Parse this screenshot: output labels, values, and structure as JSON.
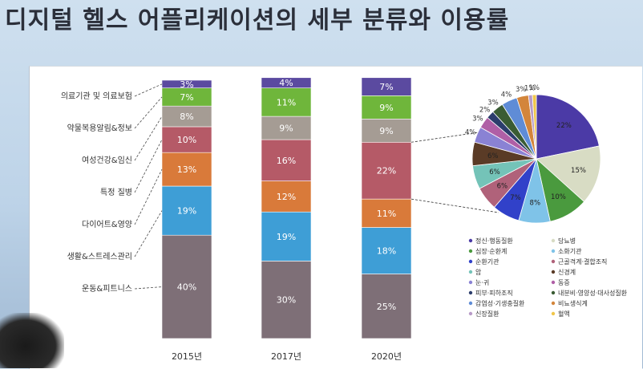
{
  "title": "디지털 헬스 어플리케이션의 세부 분류와 이용률",
  "chart_data": [
    {
      "type": "bar",
      "stacked": true,
      "categories": [
        "2015년",
        "2017년",
        "2020년"
      ],
      "series": [
        {
          "name": "운동&피트니스",
          "color": "#7e6f77",
          "values": [
            40,
            30,
            25
          ]
        },
        {
          "name": "생활&스트레스관리",
          "color": "#3e9ed6",
          "values": [
            19,
            19,
            18
          ]
        },
        {
          "name": "다이어트&영양",
          "color": "#d97a3a",
          "values": [
            13,
            12,
            11
          ]
        },
        {
          "name": "특정 질병",
          "color": "#b55a67",
          "values": [
            10,
            16,
            22
          ]
        },
        {
          "name": "여성건강&임신",
          "color": "#a59c94",
          "values": [
            8,
            9,
            9
          ]
        },
        {
          "name": "약물복용알림&정보",
          "color": "#6fb63b",
          "values": [
            7,
            11,
            9
          ]
        },
        {
          "name": "의료기관 및 의료보험",
          "color": "#5b4aa0",
          "values": [
            3,
            4,
            7
          ]
        }
      ],
      "left_labels": [
        "의료기관 및 의료보험",
        "약물복용알림&정보",
        "여성건강&임신",
        "특정 질병",
        "다이어트&영양",
        "생활&스트레스관리",
        "운동&피트니스"
      ],
      "ylim": [
        0,
        100
      ]
    },
    {
      "type": "pie",
      "slices": [
        {
          "name": "정신·행동질환",
          "value": 22,
          "color": "#4b3aa6"
        },
        {
          "name": "당뇨병",
          "value": 15,
          "color": "#d8dcc4"
        },
        {
          "name": "심장·순환계",
          "value": 10,
          "color": "#4a9a3e"
        },
        {
          "name": "소화기관",
          "value": 8,
          "color": "#7fc3e8"
        },
        {
          "name": "순환기관",
          "value": 7,
          "color": "#3141c9"
        },
        {
          "name": "근골격계·결합조직",
          "value": 6,
          "color": "#b0627a"
        },
        {
          "name": "암",
          "value": 6,
          "color": "#74c3b8"
        },
        {
          "name": "신경계",
          "value": 6,
          "color": "#5a3b26"
        },
        {
          "name": "눈·귀",
          "value": 4,
          "color": "#8a82d4"
        },
        {
          "name": "동증",
          "value": 3,
          "color": "#b05fa6"
        },
        {
          "name": "피부·피하조직",
          "value": 2,
          "color": "#2c3d6c"
        },
        {
          "name": "내분비·영양성·대사성질환",
          "value": 3,
          "color": "#3a5c34"
        },
        {
          "name": "감염성·기생충질환",
          "value": 4,
          "color": "#5f8cd6"
        },
        {
          "name": "비뇨생식계",
          "value": 3,
          "color": "#d3853b"
        },
        {
          "name": "신장질환",
          "value": 1,
          "color": "#b89bc8"
        },
        {
          "name": "혈액",
          "value": 1,
          "color": "#f0c64a"
        }
      ],
      "legend_left": [
        "정신·행동질환",
        "심장·순환계",
        "순환기관",
        "암",
        "눈·귀",
        "피부·피하조직",
        "감염성·기생충질환",
        "신장질환"
      ],
      "legend_right": [
        "당뇨병",
        "소화기관",
        "근골격계·결합조직",
        "신경계",
        "동증",
        "내분비·영양성·대사성질환",
        "비뇨생식계",
        "혈액"
      ]
    }
  ]
}
